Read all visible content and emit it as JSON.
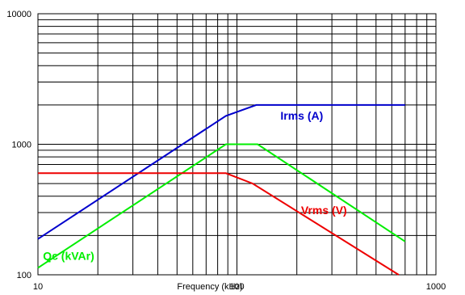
{
  "chart_data": {
    "type": "line",
    "title": "",
    "xlabel": "Frequency (kHz)",
    "ylabel": "",
    "xscale": "log",
    "yscale": "log",
    "xlim": [
      10,
      1000
    ],
    "ylim": [
      100,
      10000
    ],
    "grid": true,
    "legend": "none",
    "x_ticks": [
      "10",
      "100",
      "1000"
    ],
    "y_ticks": [
      "100",
      "1000",
      "10000"
    ],
    "series": [
      {
        "name": "Irms (A)",
        "color": "#0000cc",
        "x": [
          10,
          88,
          125,
          700
        ],
        "y": [
          188,
          1650,
          2000,
          2000
        ]
      },
      {
        "name": "Qc (kVAr)",
        "color": "#00ee00",
        "x": [
          10,
          88,
          127,
          700
        ],
        "y": [
          113,
          1000,
          1000,
          180
        ]
      },
      {
        "name": "Vrms (V)",
        "color": "#ee0000",
        "x": [
          10,
          88,
          120,
          650
        ],
        "y": [
          600,
          600,
          500,
          100
        ]
      }
    ]
  }
}
